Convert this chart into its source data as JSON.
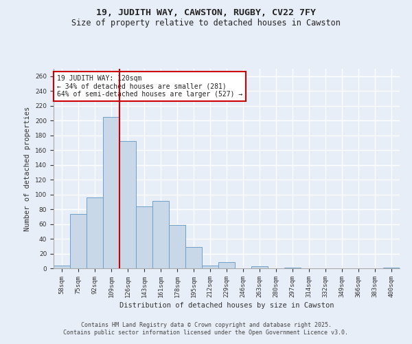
{
  "title1": "19, JUDITH WAY, CAWSTON, RUGBY, CV22 7FY",
  "title2": "Size of property relative to detached houses in Cawston",
  "xlabel": "Distribution of detached houses by size in Cawston",
  "ylabel": "Number of detached properties",
  "bar_color": "#c8d8e8",
  "bar_edgecolor": "#6fa0c8",
  "categories": [
    "58sqm",
    "75sqm",
    "92sqm",
    "109sqm",
    "126sqm",
    "143sqm",
    "161sqm",
    "178sqm",
    "195sqm",
    "212sqm",
    "229sqm",
    "246sqm",
    "263sqm",
    "280sqm",
    "297sqm",
    "314sqm",
    "332sqm",
    "349sqm",
    "366sqm",
    "383sqm",
    "400sqm"
  ],
  "values": [
    4,
    74,
    96,
    205,
    172,
    84,
    91,
    59,
    29,
    4,
    8,
    0,
    3,
    0,
    1,
    0,
    0,
    0,
    0,
    0,
    1
  ],
  "ylim": [
    0,
    270
  ],
  "yticks": [
    0,
    20,
    40,
    60,
    80,
    100,
    120,
    140,
    160,
    180,
    200,
    220,
    240,
    260
  ],
  "vline_x": 3.5,
  "vline_color": "#cc0000",
  "annotation_text": "19 JUDITH WAY: 120sqm\n← 34% of detached houses are smaller (281)\n64% of semi-detached houses are larger (527) →",
  "footer": "Contains HM Land Registry data © Crown copyright and database right 2025.\nContains public sector information licensed under the Open Government Licence v3.0.",
  "background_color": "#e8eef8",
  "plot_background": "#e8eef8",
  "grid_color": "#ffffff"
}
